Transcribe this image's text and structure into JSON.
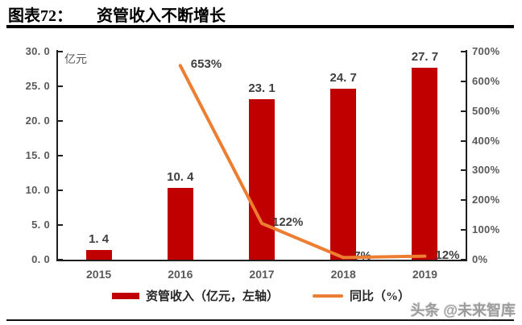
{
  "header": {
    "figure_label": "图表72：",
    "title": "资管收入不断增长"
  },
  "watermark": "头条 @未来智库",
  "chart_data": {
    "type": "bar+line",
    "title": "资管收入不断增长",
    "categories": [
      "2015",
      "2016",
      "2017",
      "2018",
      "2019"
    ],
    "series": [
      {
        "name": "资管收入（亿元，左轴）",
        "type": "bar",
        "axis": "left",
        "color": "#c00000",
        "values": [
          1.4,
          10.4,
          23.1,
          24.7,
          27.7
        ],
        "value_labels": [
          "1. 4",
          "10. 4",
          "23. 1",
          "24. 7",
          "27. 7"
        ]
      },
      {
        "name": "同比（%）",
        "type": "line",
        "axis": "right",
        "color": "#ed7d31",
        "values": [
          null,
          653,
          122,
          7,
          12
        ],
        "value_labels": [
          null,
          "653%",
          "122%",
          "7%",
          "12%"
        ]
      }
    ],
    "left_axis": {
      "unit": "亿元",
      "min": 0,
      "max": 30,
      "tick_labels": [
        "30. 0",
        "25. 0",
        "20. 0",
        "15. 0",
        "10. 0",
        "5. 0",
        "0. 0"
      ]
    },
    "right_axis": {
      "min": 0,
      "max": 700,
      "tick_labels": [
        "700%",
        "600%",
        "500%",
        "400%",
        "300%",
        "200%",
        "100%",
        "0%"
      ]
    },
    "legend": [
      "资管收入（亿元，左轴）",
      "同比（%）"
    ],
    "legend_position": "bottom",
    "grid": false
  }
}
